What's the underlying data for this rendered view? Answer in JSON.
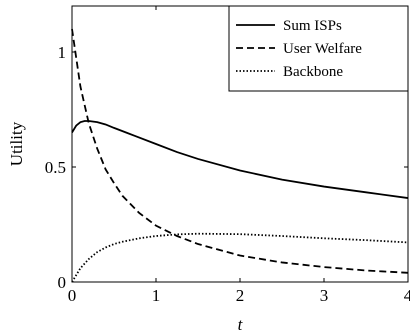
{
  "chart_data": {
    "type": "line",
    "xlabel": "t",
    "ylabel": "Utility",
    "xlim": [
      0,
      4
    ],
    "ylim": [
      0,
      1.2
    ],
    "xticks": [
      0,
      1,
      2,
      3,
      4
    ],
    "xtick_labels": [
      "0",
      "1",
      "2",
      "3",
      "4"
    ],
    "yticks": [
      0,
      0.5,
      1
    ],
    "ytick_labels": [
      "0",
      "0.5",
      "1"
    ],
    "grid": false,
    "legend_position": "top-right",
    "series": [
      {
        "name": "Sum ISPs",
        "style": "solid",
        "x": [
          0,
          0.05,
          0.1,
          0.15,
          0.2,
          0.3,
          0.4,
          0.5,
          0.75,
          1,
          1.25,
          1.5,
          2,
          2.5,
          3,
          3.5,
          4
        ],
        "y": [
          0.65,
          0.68,
          0.695,
          0.7,
          0.7,
          0.695,
          0.685,
          0.67,
          0.635,
          0.6,
          0.565,
          0.535,
          0.485,
          0.445,
          0.415,
          0.39,
          0.365
        ]
      },
      {
        "name": "User Welfare",
        "style": "dashed",
        "x": [
          0,
          0.1,
          0.2,
          0.3,
          0.4,
          0.5,
          0.6,
          0.8,
          1,
          1.25,
          1.5,
          2,
          2.5,
          3,
          3.5,
          4
        ],
        "y": [
          1.1,
          0.85,
          0.69,
          0.58,
          0.49,
          0.43,
          0.375,
          0.3,
          0.245,
          0.2,
          0.165,
          0.115,
          0.085,
          0.065,
          0.05,
          0.04
        ]
      },
      {
        "name": "Backbone",
        "style": "dotted",
        "x": [
          0,
          0.1,
          0.2,
          0.3,
          0.4,
          0.5,
          0.6,
          0.8,
          1,
          1.25,
          1.5,
          2,
          2.5,
          3,
          3.5,
          4
        ],
        "y": [
          0,
          0.06,
          0.1,
          0.13,
          0.15,
          0.165,
          0.175,
          0.19,
          0.2,
          0.207,
          0.21,
          0.208,
          0.2,
          0.19,
          0.182,
          0.172
        ]
      }
    ]
  }
}
